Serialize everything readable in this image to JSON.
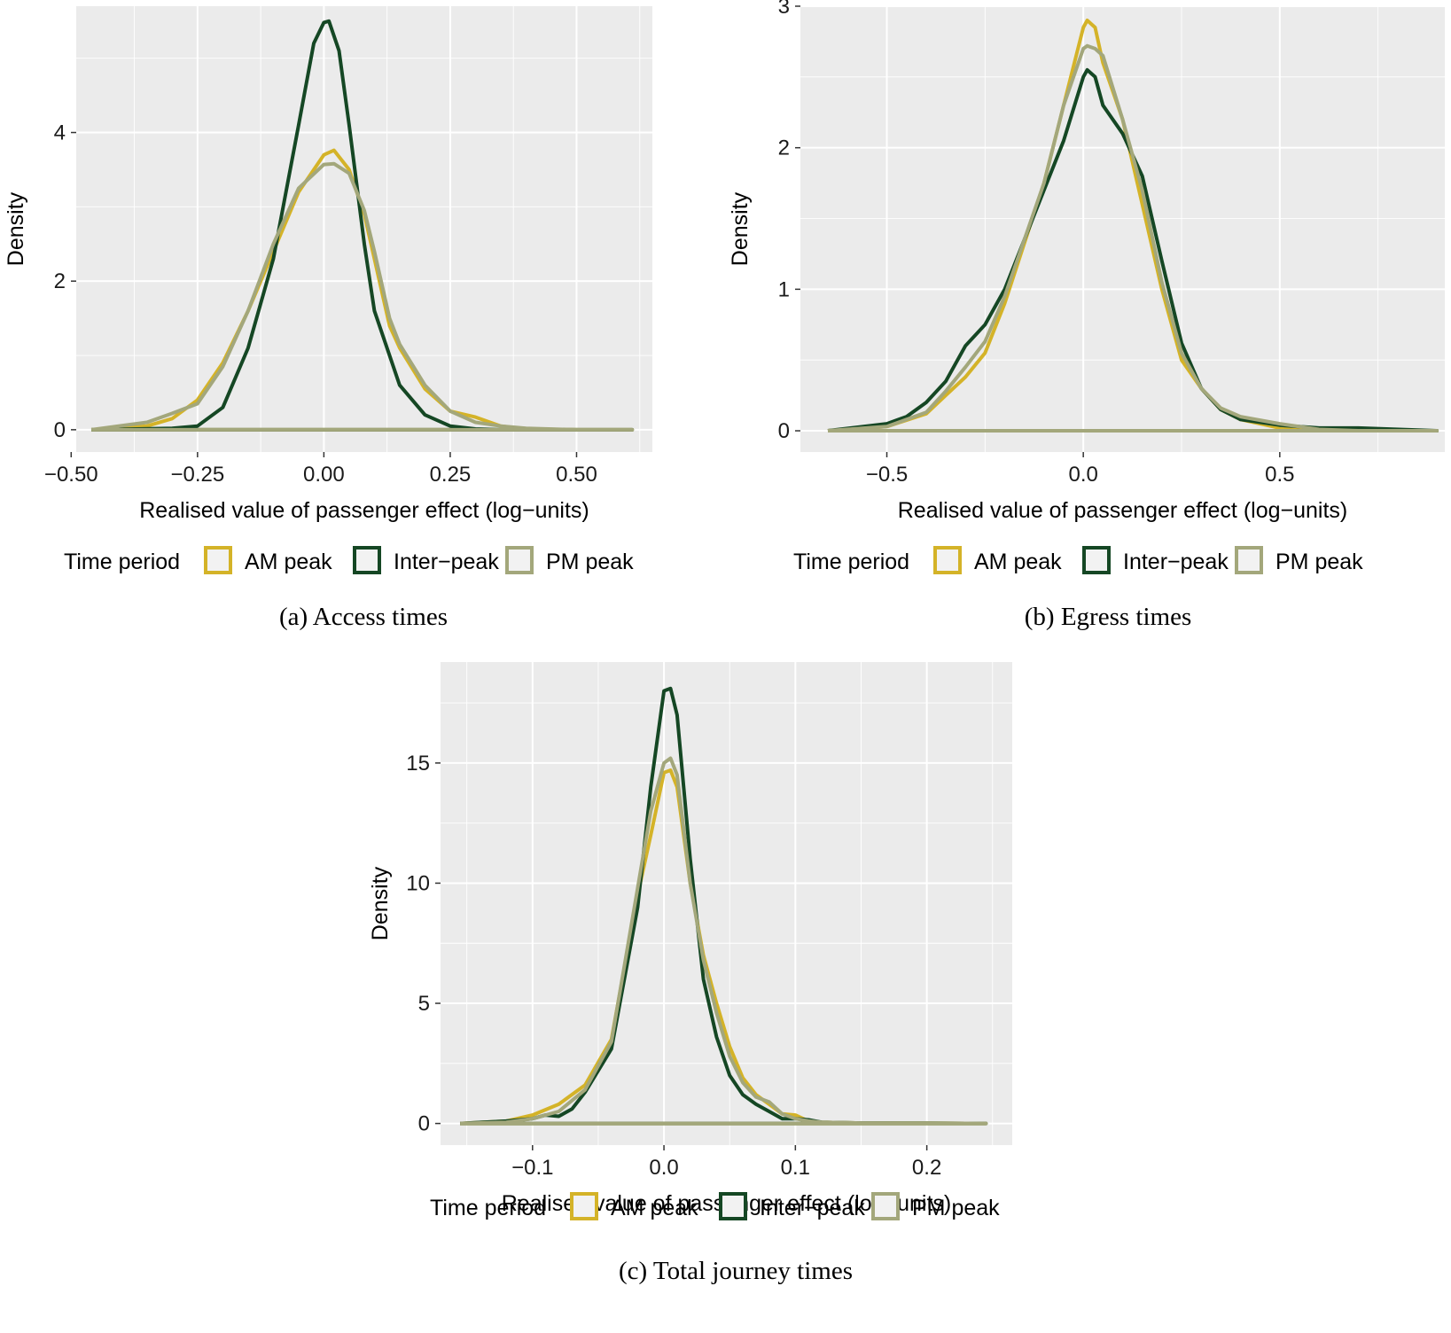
{
  "colors": {
    "am_peak": "#D4B328",
    "inter_peak": "#154724",
    "pm_peak": "#A3A77B",
    "panel_bg": "#EBEBEB",
    "grid": "#FFFFFF"
  },
  "legend": {
    "title": "Time period",
    "entries": [
      "AM peak",
      "Inter−peak",
      "PM peak"
    ]
  },
  "chart_data": [
    {
      "type": "line",
      "caption": "(a) Access times",
      "xlabel": "Realised value of passenger effect (log−units)",
      "ylabel": "Density",
      "xlim": [
        -0.49,
        0.65
      ],
      "ylim": [
        -0.3,
        5.7
      ],
      "xticks": [
        -0.5,
        -0.25,
        0.0,
        0.25,
        0.5
      ],
      "xtick_labels": [
        "−0.50",
        "−0.25",
        "0.00",
        "0.25",
        "0.50"
      ],
      "yticks": [
        0,
        2,
        4
      ],
      "ytick_labels": [
        "0",
        "2",
        "4"
      ],
      "grid": true,
      "legend_position": "bottom",
      "series": [
        {
          "name": "AM peak",
          "x": [
            -0.46,
            -0.35,
            -0.3,
            -0.25,
            -0.2,
            -0.15,
            -0.1,
            -0.05,
            0.0,
            0.02,
            0.05,
            0.08,
            0.1,
            0.13,
            0.15,
            0.2,
            0.25,
            0.3,
            0.35,
            0.4,
            0.5,
            0.61
          ],
          "y": [
            0,
            0.05,
            0.15,
            0.4,
            0.9,
            1.6,
            2.4,
            3.2,
            3.7,
            3.76,
            3.5,
            2.9,
            2.3,
            1.4,
            1.1,
            0.55,
            0.25,
            0.17,
            0.05,
            0.01,
            0,
            0
          ]
        },
        {
          "name": "Inter−peak",
          "x": [
            -0.46,
            -0.3,
            -0.25,
            -0.2,
            -0.15,
            -0.1,
            -0.05,
            -0.02,
            0.0,
            0.01,
            0.03,
            0.05,
            0.08,
            0.1,
            0.15,
            0.2,
            0.25,
            0.3,
            0.35,
            0.5,
            0.61
          ],
          "y": [
            0,
            0.02,
            0.05,
            0.3,
            1.1,
            2.3,
            4.1,
            5.2,
            5.48,
            5.5,
            5.1,
            4.1,
            2.5,
            1.6,
            0.6,
            0.2,
            0.05,
            0.01,
            0,
            0,
            0
          ]
        },
        {
          "name": "PM peak",
          "x": [
            -0.46,
            -0.35,
            -0.3,
            -0.25,
            -0.2,
            -0.15,
            -0.1,
            -0.05,
            0.0,
            0.02,
            0.05,
            0.08,
            0.1,
            0.13,
            0.15,
            0.2,
            0.25,
            0.3,
            0.35,
            0.4,
            0.5,
            0.61
          ],
          "y": [
            0,
            0.1,
            0.22,
            0.35,
            0.85,
            1.6,
            2.5,
            3.25,
            3.57,
            3.58,
            3.45,
            2.95,
            2.4,
            1.5,
            1.15,
            0.6,
            0.25,
            0.1,
            0.05,
            0.02,
            0,
            0
          ]
        }
      ]
    },
    {
      "type": "line",
      "caption": "(b) Egress times",
      "xlabel": "Realised value of passenger effect (log−units)",
      "ylabel": "Density",
      "xlim": [
        -0.72,
        0.92
      ],
      "ylim": [
        -0.15,
        3.0
      ],
      "xticks": [
        -0.5,
        0.0,
        0.5
      ],
      "xtick_labels": [
        "−0.5",
        "0.0",
        "0.5"
      ],
      "yticks": [
        0,
        1,
        2,
        3
      ],
      "ytick_labels": [
        "0",
        "1",
        "2",
        "3"
      ],
      "grid": true,
      "legend_position": "bottom",
      "series": [
        {
          "name": "AM peak",
          "x": [
            -0.65,
            -0.5,
            -0.4,
            -0.35,
            -0.3,
            -0.25,
            -0.2,
            -0.1,
            -0.05,
            0.0,
            0.01,
            0.03,
            0.05,
            0.1,
            0.15,
            0.2,
            0.25,
            0.3,
            0.35,
            0.4,
            0.5,
            0.6,
            0.7,
            0.9
          ],
          "y": [
            0,
            0.03,
            0.12,
            0.25,
            0.38,
            0.55,
            0.9,
            1.75,
            2.3,
            2.85,
            2.9,
            2.85,
            2.6,
            2.2,
            1.6,
            1.0,
            0.5,
            0.3,
            0.15,
            0.08,
            0.02,
            0,
            0,
            0
          ]
        },
        {
          "name": "Inter−peak",
          "x": [
            -0.65,
            -0.5,
            -0.45,
            -0.4,
            -0.35,
            -0.3,
            -0.25,
            -0.2,
            -0.1,
            -0.05,
            0.0,
            0.01,
            0.03,
            0.05,
            0.1,
            0.15,
            0.2,
            0.25,
            0.3,
            0.35,
            0.4,
            0.5,
            0.6,
            0.7,
            0.9
          ],
          "y": [
            0,
            0.05,
            0.1,
            0.2,
            0.35,
            0.6,
            0.75,
            1.0,
            1.7,
            2.05,
            2.5,
            2.55,
            2.5,
            2.3,
            2.1,
            1.8,
            1.2,
            0.62,
            0.3,
            0.15,
            0.08,
            0.04,
            0.02,
            0.02,
            0
          ]
        },
        {
          "name": "PM peak",
          "x": [
            -0.65,
            -0.5,
            -0.4,
            -0.35,
            -0.3,
            -0.25,
            -0.2,
            -0.1,
            -0.05,
            0.0,
            0.01,
            0.03,
            0.05,
            0.1,
            0.15,
            0.2,
            0.25,
            0.3,
            0.35,
            0.4,
            0.5,
            0.6,
            0.7,
            0.9
          ],
          "y": [
            0,
            0.03,
            0.13,
            0.28,
            0.45,
            0.63,
            0.95,
            1.75,
            2.3,
            2.7,
            2.72,
            2.7,
            2.65,
            2.2,
            1.7,
            1.05,
            0.55,
            0.3,
            0.16,
            0.1,
            0.05,
            0.01,
            0,
            0
          ]
        }
      ]
    },
    {
      "type": "line",
      "caption": "(c) Total journey times",
      "xlabel": "Realised value of passenger effect (log−units)",
      "ylabel": "Density",
      "xlim": [
        -0.17,
        0.265
      ],
      "ylim": [
        -0.9,
        19.2
      ],
      "xticks": [
        -0.1,
        0.0,
        0.1,
        0.2
      ],
      "xtick_labels": [
        "−0.1",
        "0.0",
        "0.1",
        "0.2"
      ],
      "yticks": [
        0,
        5,
        10,
        15
      ],
      "ytick_labels": [
        "0",
        "5",
        "10",
        "15"
      ],
      "grid": true,
      "legend_position": "bottom",
      "series": [
        {
          "name": "AM peak",
          "x": [
            -0.155,
            -0.12,
            -0.1,
            -0.08,
            -0.06,
            -0.04,
            -0.02,
            -0.01,
            0.0,
            0.005,
            0.01,
            0.02,
            0.03,
            0.04,
            0.05,
            0.06,
            0.07,
            0.08,
            0.09,
            0.1,
            0.11,
            0.12,
            0.15,
            0.2,
            0.245
          ],
          "y": [
            0,
            0.1,
            0.35,
            0.8,
            1.6,
            3.5,
            9.5,
            12.0,
            14.6,
            14.7,
            14.0,
            10.0,
            7.0,
            5.0,
            3.2,
            1.9,
            1.2,
            0.8,
            0.4,
            0.35,
            0.1,
            0.05,
            0.02,
            0.01,
            0
          ]
        },
        {
          "name": "Inter−peak",
          "x": [
            -0.155,
            -0.12,
            -0.1,
            -0.09,
            -0.08,
            -0.07,
            -0.06,
            -0.04,
            -0.02,
            -0.01,
            0.0,
            0.005,
            0.01,
            0.02,
            0.03,
            0.04,
            0.05,
            0.06,
            0.07,
            0.08,
            0.09,
            0.1,
            0.11,
            0.12,
            0.15,
            0.2,
            0.245
          ],
          "y": [
            0,
            0.1,
            0.2,
            0.35,
            0.3,
            0.6,
            1.3,
            3.1,
            9.0,
            14.0,
            18.0,
            18.1,
            17.0,
            11.0,
            6.0,
            3.6,
            2.0,
            1.2,
            0.8,
            0.5,
            0.2,
            0.2,
            0.15,
            0.05,
            0.02,
            0.01,
            0
          ]
        },
        {
          "name": "PM peak",
          "x": [
            -0.155,
            -0.12,
            -0.1,
            -0.08,
            -0.06,
            -0.04,
            -0.02,
            -0.01,
            0.0,
            0.005,
            0.01,
            0.02,
            0.03,
            0.04,
            0.05,
            0.06,
            0.07,
            0.08,
            0.09,
            0.1,
            0.11,
            0.12,
            0.15,
            0.2,
            0.245
          ],
          "y": [
            0,
            0.05,
            0.2,
            0.5,
            1.4,
            3.4,
            9.8,
            13.0,
            15.0,
            15.2,
            14.5,
            10.0,
            6.8,
            4.6,
            2.8,
            1.7,
            1.1,
            0.9,
            0.4,
            0.2,
            0.1,
            0.05,
            0.02,
            0.01,
            0
          ]
        }
      ]
    }
  ]
}
